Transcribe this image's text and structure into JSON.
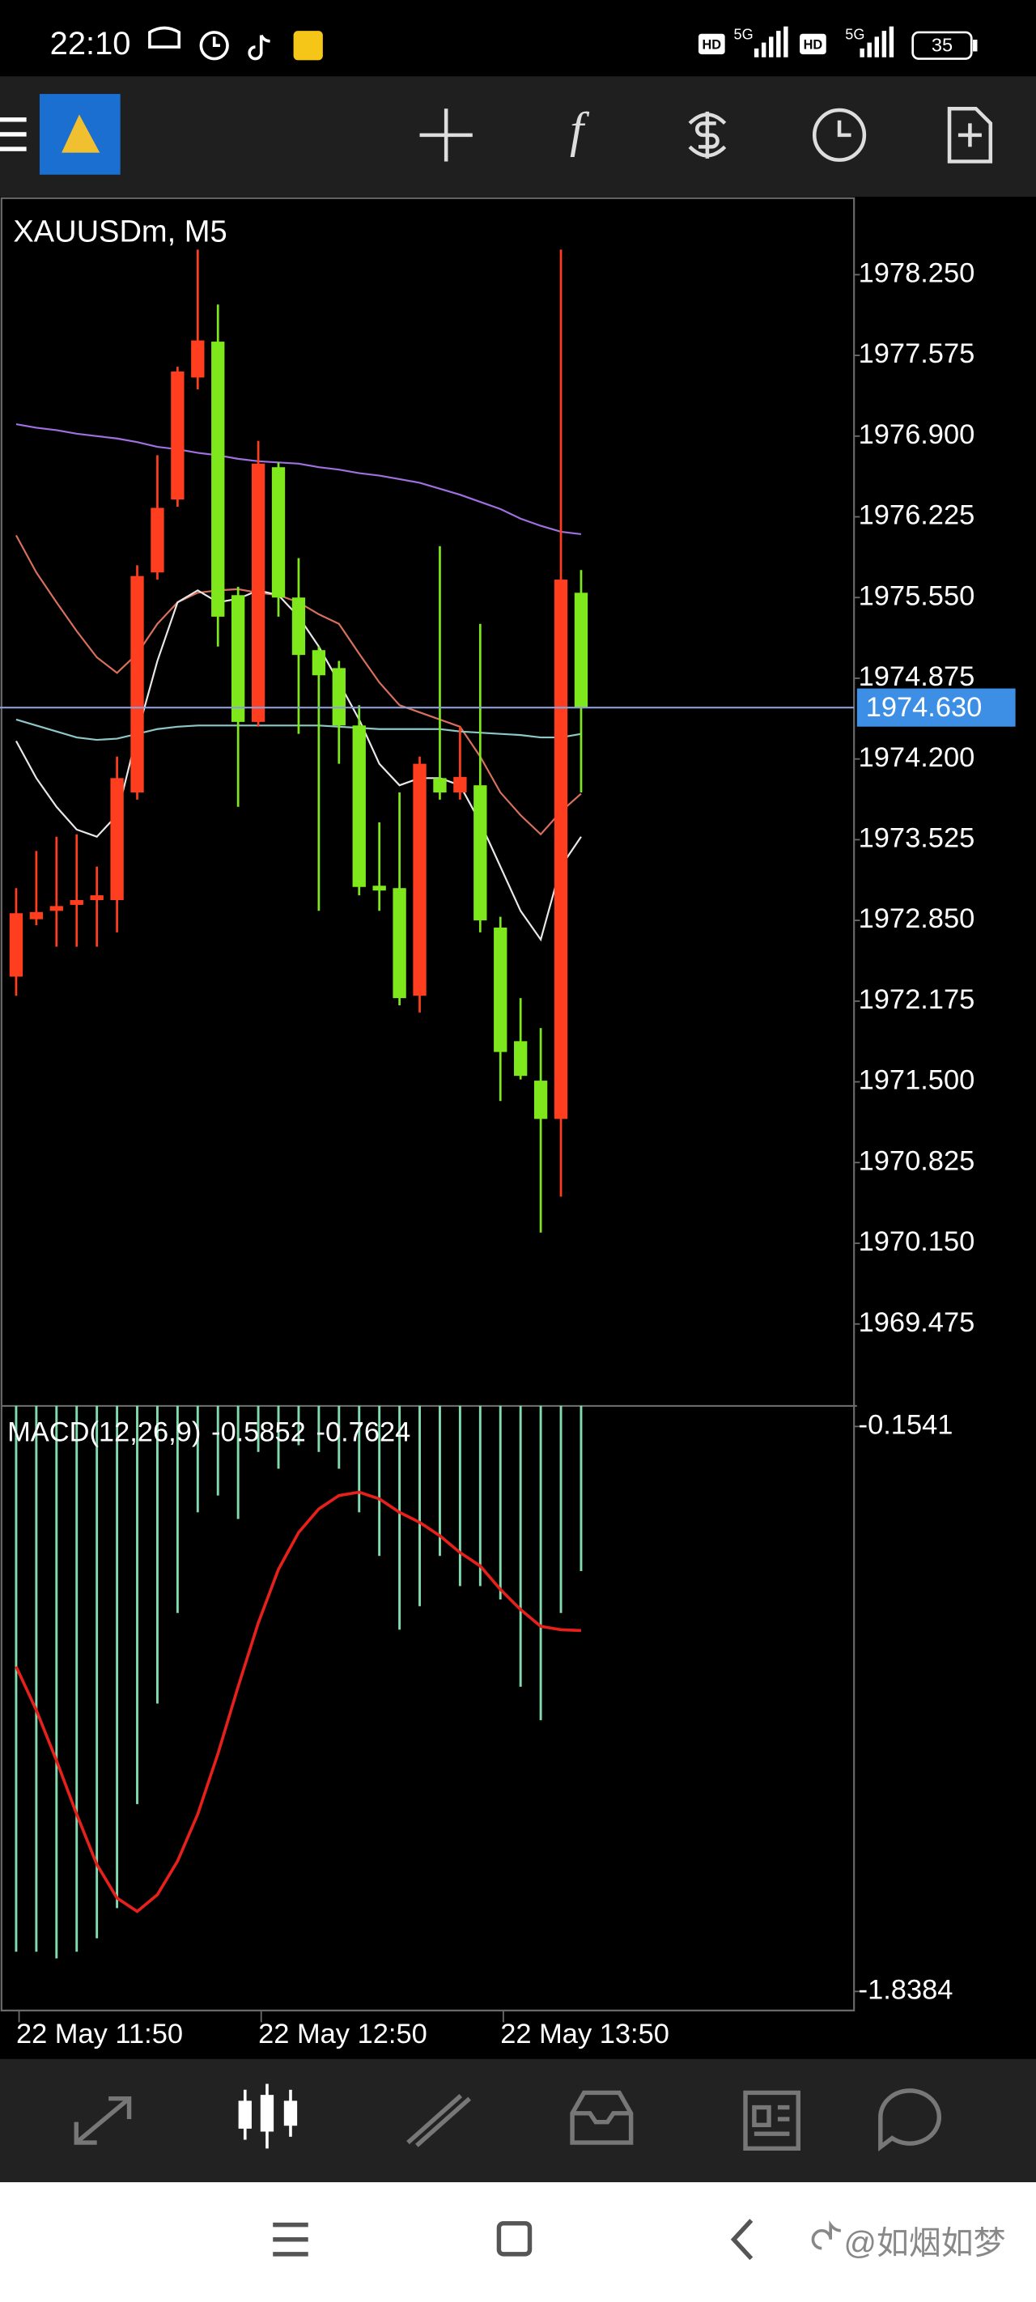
{
  "status_bar": {
    "time": "22:10",
    "hd_1": "HD",
    "network_1": "5G",
    "hd_2": "HD",
    "network_2": "5G",
    "battery": "35"
  },
  "toolbar": {
    "indicators_icon": "f"
  },
  "watermark": "@如烟如梦",
  "chart_data": [
    {
      "type": "candlestick",
      "title": "XAUUSDm, M5",
      "categories": [
        "22 May 11:50",
        null,
        null,
        null,
        null,
        null,
        null,
        null,
        null,
        null,
        null,
        null,
        "22 May 12:50",
        null,
        null,
        null,
        null,
        null,
        null,
        null,
        null,
        null,
        null,
        null,
        "22 May 13:50",
        null,
        null,
        null,
        null
      ],
      "ohlc": [
        [
          1972.38,
          1973.12,
          1972.22,
          1972.91
        ],
        [
          1972.86,
          1973.43,
          1972.81,
          1972.92
        ],
        [
          1972.93,
          1973.55,
          1972.63,
          1972.97
        ],
        [
          1972.98,
          1973.57,
          1972.63,
          1973.02
        ],
        [
          1973.02,
          1973.3,
          1972.63,
          1973.06
        ],
        [
          1973.02,
          1974.22,
          1972.75,
          1974.04
        ],
        [
          1973.92,
          1975.82,
          1973.86,
          1975.73
        ],
        [
          1975.76,
          1976.74,
          1975.7,
          1976.3
        ],
        [
          1976.37,
          1977.48,
          1976.31,
          1977.44
        ],
        [
          1977.39,
          1978.46,
          1977.29,
          1977.7
        ],
        [
          1977.69,
          1978,
          1975.14,
          1975.39
        ],
        [
          1975.57,
          1975.64,
          1973.8,
          1974.51
        ],
        [
          1974.51,
          1976.86,
          1974.47,
          1976.67
        ],
        [
          1976.64,
          1976.68,
          1975.39,
          1975.55
        ],
        [
          1975.55,
          1975.88,
          1974.41,
          1975.07
        ],
        [
          1975.11,
          1975.14,
          1972.93,
          1974.9
        ],
        [
          1974.96,
          1975.02,
          1974.16,
          1974.48
        ],
        [
          1974.48,
          1974.65,
          1973.06,
          1973.13
        ],
        [
          1973.14,
          1973.67,
          1972.93,
          1973.1
        ],
        [
          1973.12,
          1973.92,
          1972.14,
          1972.2
        ],
        [
          1972.22,
          1974.22,
          1972.08,
          1974.16
        ],
        [
          1974.04,
          1975.98,
          1973.86,
          1973.92
        ],
        [
          1973.92,
          1974.47,
          1973.86,
          1974.05
        ],
        [
          1973.98,
          1975.33,
          1972.75,
          1972.85
        ],
        [
          1972.79,
          1972.88,
          1971.34,
          1971.75
        ],
        [
          1971.84,
          1972.2,
          1971.52,
          1971.55
        ],
        [
          1971.51,
          1971.95,
          1970.24,
          1971.19
        ],
        [
          1971.19,
          1978.46,
          1970.54,
          1975.7
        ],
        [
          1975.59,
          1975.78,
          1973.92,
          1974.63
        ]
      ],
      "up_color": "#ff3d1f",
      "down_color": "#7ee81c",
      "moving_averages": [
        {
          "color": "#a070e0",
          "values": [
            1977,
            1976.97,
            1976.95,
            1976.92,
            1976.9,
            1976.88,
            1976.85,
            1976.81,
            1976.79,
            1976.76,
            1976.74,
            1976.71,
            1976.69,
            1976.68,
            1976.67,
            1976.64,
            1976.62,
            1976.59,
            1976.57,
            1976.54,
            1976.51,
            1976.46,
            1976.41,
            1976.35,
            1976.29,
            1976.21,
            1976.15,
            1976.1,
            1976.08
          ]
        },
        {
          "color": "#d8705c",
          "values": [
            1976.07,
            1975.76,
            1975.51,
            1975.27,
            1975.05,
            1974.92,
            1975.08,
            1975.33,
            1975.51,
            1975.59,
            1975.61,
            1975.62,
            1975.59,
            1975.57,
            1975.51,
            1975.41,
            1975.33,
            1975.08,
            1974.84,
            1974.65,
            1974.59,
            1974.53,
            1974.47,
            1974.22,
            1973.92,
            1973.73,
            1973.57,
            1973.76,
            1973.91
          ]
        },
        {
          "color": "#e8e8e8",
          "values": [
            1974.35,
            1974.04,
            1973.8,
            1973.61,
            1973.55,
            1973.73,
            1974.41,
            1975.02,
            1975.51,
            1975.61,
            1975.51,
            1975.54,
            1975.61,
            1975.57,
            1975.39,
            1975.14,
            1974.84,
            1974.53,
            1974.16,
            1973.98,
            1974.04,
            1974.04,
            1973.98,
            1973.67,
            1973.3,
            1972.93,
            1972.69,
            1973.3,
            1973.55
          ]
        },
        {
          "color": "#8cc8c8",
          "values": [
            1974.53,
            1974.48,
            1974.43,
            1974.38,
            1974.36,
            1974.37,
            1974.41,
            1974.45,
            1974.47,
            1974.48,
            1974.48,
            1974.48,
            1974.48,
            1974.48,
            1974.48,
            1974.48,
            1974.47,
            1974.46,
            1974.45,
            1974.45,
            1974.45,
            1974.45,
            1974.43,
            1974.42,
            1974.41,
            1974.4,
            1974.38,
            1974.38,
            1974.41
          ]
        }
      ],
      "current_price": {
        "value": 1974.63,
        "label": "1974.630"
      },
      "current_price_color": "#3d8fe6",
      "ylim": [
        1968.79,
        1978.89
      ],
      "yticks": [
        {
          "value": 1978.25,
          "label": "1978.250"
        },
        1977.575,
        {
          "value": 1976.9,
          "label": "1976.900"
        },
        1976.225,
        {
          "value": 1975.55,
          "label": "1975.550"
        },
        1974.875,
        {
          "value": 1974.2,
          "label": "1974.200"
        },
        1973.525,
        {
          "value": 1972.85,
          "label": "1972.850"
        },
        1972.175,
        {
          "value": 1971.5,
          "label": "1971.500"
        },
        1970.825,
        {
          "value": 1970.15,
          "label": "1970.150"
        },
        1969.475
      ]
    },
    {
      "type": "macd",
      "title": "MACD(12,26,9)",
      "histogram": {
        "color": "#80dcae",
        "values": [
          -1.72,
          -1.72,
          -1.74,
          -1.72,
          -1.68,
          -1.59,
          -1.28,
          -0.98,
          -0.71,
          -0.41,
          -0.36,
          -0.43,
          -0.23,
          -0.28,
          -0.21,
          -0.23,
          -0.28,
          -0.41,
          -0.54,
          -0.76,
          -0.69,
          -0.54,
          -0.63,
          -0.63,
          -0.67,
          -0.93,
          -1.03,
          -0.71,
          -0.5852
        ]
      },
      "signal": {
        "color": "#e8201c",
        "values": [
          -0.87,
          -1,
          -1.15,
          -1.31,
          -1.46,
          -1.56,
          -1.6,
          -1.55,
          -1.45,
          -1.31,
          -1.13,
          -0.93,
          -0.74,
          -0.58,
          -0.47,
          -0.4,
          -0.36,
          -0.35,
          -0.37,
          -0.41,
          -0.44,
          -0.48,
          -0.53,
          -0.57,
          -0.64,
          -0.7,
          -0.75,
          -0.76,
          -0.7624
        ]
      },
      "ylim": [
        -1.8953,
        -0.0928
      ],
      "yticks": [
        -0.1541,
        -1.8384
      ]
    }
  ]
}
